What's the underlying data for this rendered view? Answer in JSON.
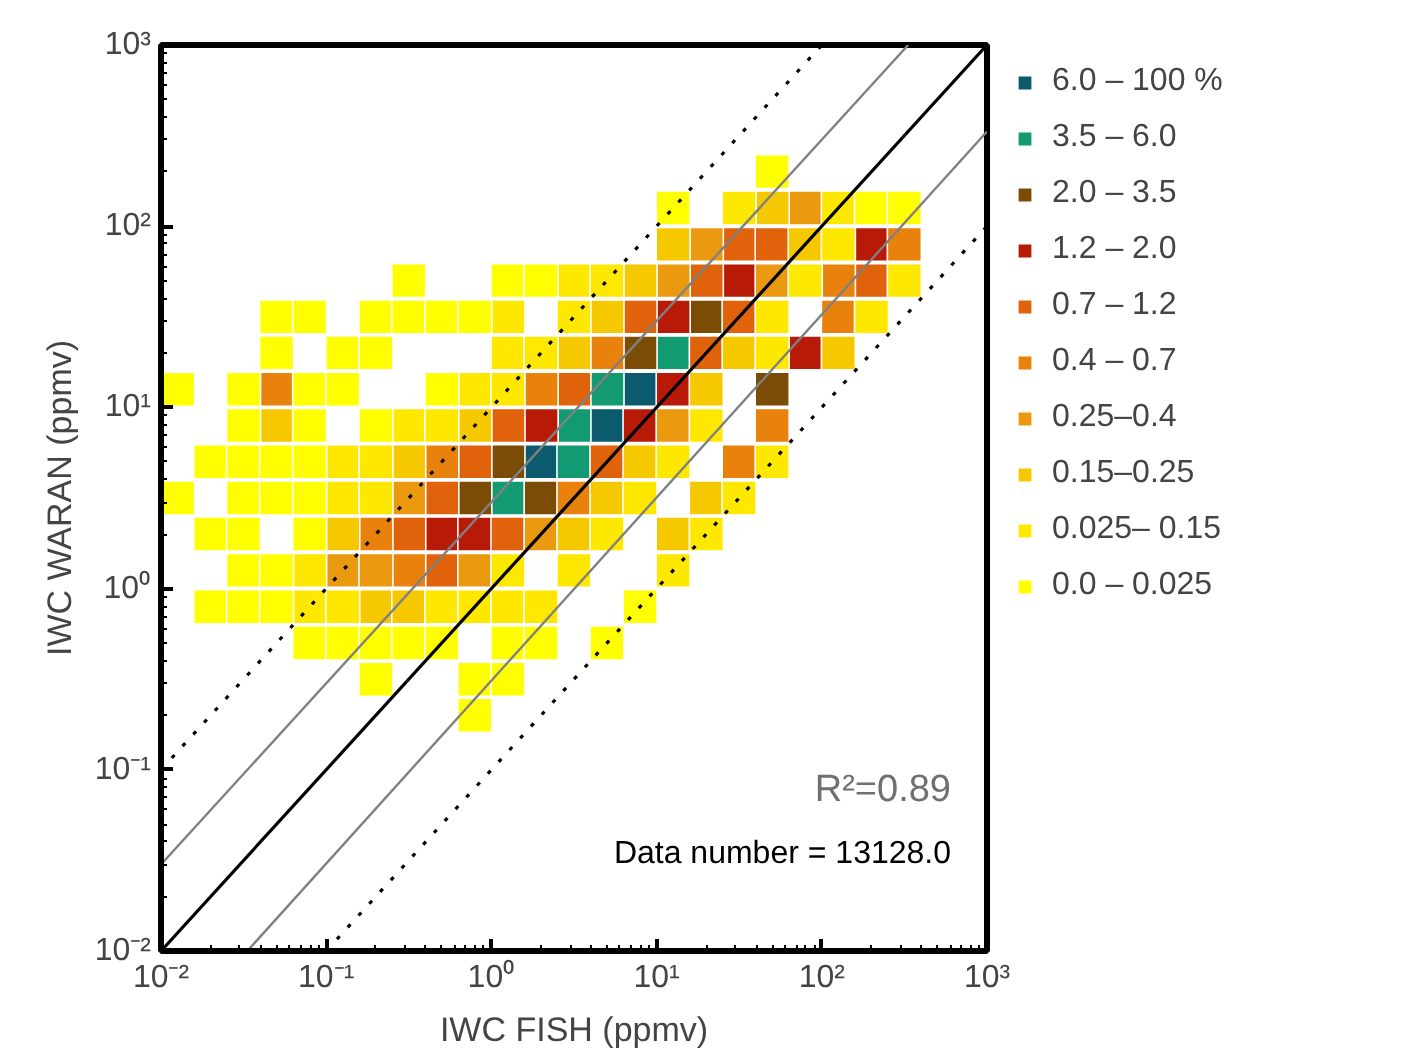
{
  "chart_data": {
    "type": "scatter",
    "legend": "right",
    "log": "xy",
    "xlabel": "IWC FISH (ppmv)",
    "ylabel": "IWC WARAN (ppmv)",
    "xlim": [
      0.01,
      1000
    ],
    "ylim": [
      0.01,
      1000
    ],
    "xticks": [
      {
        "value": 0.01,
        "label": "10⁻²"
      },
      {
        "value": 0.1,
        "label": "10⁻¹"
      },
      {
        "value": 1,
        "label": "10⁰"
      },
      {
        "value": 10,
        "label": "10¹"
      },
      {
        "value": 100,
        "label": "10²"
      },
      {
        "value": 1000,
        "label": "10³"
      }
    ],
    "yticks": [
      {
        "value": 0.01,
        "label": "10⁻²"
      },
      {
        "value": 0.1,
        "label": "10⁻¹"
      },
      {
        "value": 1,
        "label": "10⁰"
      },
      {
        "value": 10,
        "label": "10¹"
      },
      {
        "value": 100,
        "label": "10²"
      },
      {
        "value": 1000,
        "label": "10³"
      }
    ],
    "annotations": [
      "R²=0.89",
      "Data number = 13128.0"
    ],
    "series": [
      {
        "name": "6.0 – 100 %",
        "marker": "square",
        "color": "#0b5a6e",
        "x": [
          7.94,
          5.01,
          2
        ],
        "values": [
          12.6,
          7.94,
          5.01
        ]
      },
      {
        "name": "3.5 – 6.0",
        "marker": "square",
        "color": "#129a72",
        "x": [
          12.6,
          5.01,
          3.16,
          3.16,
          1.26
        ],
        "values": [
          20,
          12.6,
          7.94,
          5.01,
          3.16
        ]
      },
      {
        "name": "2.0 – 3.5",
        "marker": "square",
        "color": "#7a4c05",
        "x": [
          20,
          7.94,
          50.1,
          1.26,
          0.794,
          2
        ],
        "values": [
          31.6,
          20,
          12.6,
          5.01,
          3.16,
          3.16
        ]
      },
      {
        "name": "1.2 – 2.0",
        "marker": "square",
        "color": "#b81a08",
        "x": [
          200,
          31.6,
          12.6,
          79.4,
          12.6,
          2,
          7.94,
          0.501,
          0.794
        ],
        "values": [
          79.4,
          50.1,
          31.6,
          20,
          12.6,
          7.94,
          7.94,
          2,
          2
        ]
      },
      {
        "name": "0.7 – 1.2",
        "marker": "square",
        "color": "#e0620a",
        "x": [
          31.6,
          50.1,
          20,
          200,
          7.94,
          31.6,
          20,
          3.16,
          1.26,
          0.794,
          5.01,
          0.501,
          0.316,
          1.26,
          0.501
        ],
        "values": [
          79.4,
          79.4,
          50.1,
          50.1,
          31.6,
          31.6,
          20,
          12.6,
          7.94,
          5.01,
          5.01,
          3.16,
          2,
          2,
          1.26
        ]
      },
      {
        "name": "0.4 – 0.7",
        "marker": "square",
        "color": "#e8820c",
        "x": [
          316,
          126,
          126,
          5.01,
          0.0501,
          2,
          50.1,
          0.501,
          31.6,
          3.16,
          0.2,
          0.316
        ],
        "values": [
          79.4,
          50.1,
          31.6,
          20,
          12.6,
          12.6,
          7.94,
          5.01,
          5.01,
          3.16,
          2,
          1.26
        ]
      },
      {
        "name": "0.25–0.4",
        "marker": "square",
        "color": "#eb9a10",
        "x": [
          79.4,
          20,
          12.6,
          50.1,
          12.6,
          0.316,
          2,
          0.126,
          0.2,
          0.794
        ],
        "values": [
          126,
          79.4,
          50.1,
          50.1,
          7.94,
          3.16,
          2,
          1.26,
          1.26,
          1.26
        ]
      },
      {
        "name": "0.15–0.25",
        "marker": "square",
        "color": "#f5c800",
        "x": [
          50.1,
          12.6,
          79.4,
          7.94,
          5.01,
          3.16,
          31.6,
          126,
          20,
          0.0501,
          0.794,
          0.316,
          7.94,
          5.01,
          20,
          0.126,
          3.16,
          12.6,
          0.2,
          0.316
        ],
        "values": [
          126,
          79.4,
          79.4,
          50.1,
          31.6,
          20,
          20,
          20,
          12.6,
          7.94,
          7.94,
          5.01,
          5.01,
          3.16,
          3.16,
          2,
          2,
          2,
          0.794,
          0.794
        ]
      },
      {
        "name": "0.025– 0.15",
        "marker": "square",
        "color": "#ffe800",
        "x": [
          31.6,
          126,
          126,
          3.16,
          5.01,
          79.4,
          316,
          1.26,
          3.16,
          50.1,
          200,
          1.26,
          2,
          50.1,
          0.794,
          1.26,
          0.316,
          0.501,
          20,
          0.126,
          0.2,
          12.6,
          50.1,
          0.126,
          0.2,
          7.94,
          31.6,
          5.01,
          20,
          0.0794,
          1.26,
          3.16,
          12.6,
          0.0794,
          0.126,
          0.501,
          0.794,
          1.26,
          2
        ],
        "values": [
          126,
          126,
          79.4,
          50.1,
          50.1,
          50.1,
          50.1,
          31.6,
          31.6,
          31.6,
          31.6,
          20,
          20,
          20,
          12.6,
          12.6,
          7.94,
          7.94,
          7.94,
          5.01,
          5.01,
          5.01,
          5.01,
          3.16,
          3.16,
          3.16,
          3.16,
          2,
          2,
          1.26,
          1.26,
          1.26,
          1.26,
          0.794,
          0.794,
          0.794,
          0.794,
          0.794,
          0.794
        ]
      },
      {
        "name": "0.0 – 0.025",
        "marker": "square",
        "color": "#ffff00",
        "x": [
          50.1,
          12.6,
          200,
          316,
          0.316,
          1.26,
          2,
          0.0501,
          0.0794,
          0.2,
          0.316,
          0.501,
          0.794,
          0.0501,
          0.126,
          0.2,
          0.0126,
          0.0316,
          0.0794,
          0.126,
          0.501,
          0.0316,
          0.0794,
          0.2,
          0.02,
          0.0316,
          0.0501,
          0.0794,
          0.0126,
          0.0316,
          0.0501,
          0.0794,
          0.02,
          0.0316,
          0.0794,
          0.0316,
          0.0501,
          0.02,
          0.0316,
          0.0501,
          7.94,
          0.0794,
          0.126,
          0.2,
          0.316,
          0.501,
          1.26,
          2,
          5.01,
          0.2,
          0.794,
          1.26,
          0.794
        ],
        "values": [
          200,
          126,
          126,
          126,
          50.1,
          50.1,
          50.1,
          31.6,
          31.6,
          31.6,
          31.6,
          31.6,
          31.6,
          20,
          20,
          20,
          12.6,
          12.6,
          12.6,
          12.6,
          12.6,
          7.94,
          7.94,
          7.94,
          5.01,
          5.01,
          5.01,
          5.01,
          3.16,
          3.16,
          3.16,
          3.16,
          2,
          2,
          2,
          1.26,
          1.26,
          0.794,
          0.794,
          0.794,
          0.794,
          0.501,
          0.501,
          0.501,
          0.501,
          0.501,
          0.501,
          0.501,
          0.501,
          0.316,
          0.316,
          0.316,
          0.2
        ]
      },
      {
        "type": "line",
        "color": "#000000",
        "line_style": "solid",
        "x": [
          0.01,
          1000
        ],
        "values": [
          0.01,
          1000
        ]
      },
      {
        "type": "line",
        "color": "#808080",
        "line_style": "solid",
        "x": [
          0.01,
          333.3
        ],
        "values": [
          0.03,
          1000
        ]
      },
      {
        "type": "line",
        "color": "#808080",
        "line_style": "solid",
        "x": [
          0.0333,
          1000
        ],
        "values": [
          0.01,
          333.3
        ]
      },
      {
        "type": "line",
        "color": "#000000",
        "line_style": "dotted",
        "x": [
          0.01,
          100
        ],
        "values": [
          0.1,
          1000
        ]
      },
      {
        "type": "line",
        "color": "#000000",
        "line_style": "dotted",
        "x": [
          0.1,
          1000
        ],
        "values": [
          0.01,
          100
        ]
      }
    ]
  }
}
